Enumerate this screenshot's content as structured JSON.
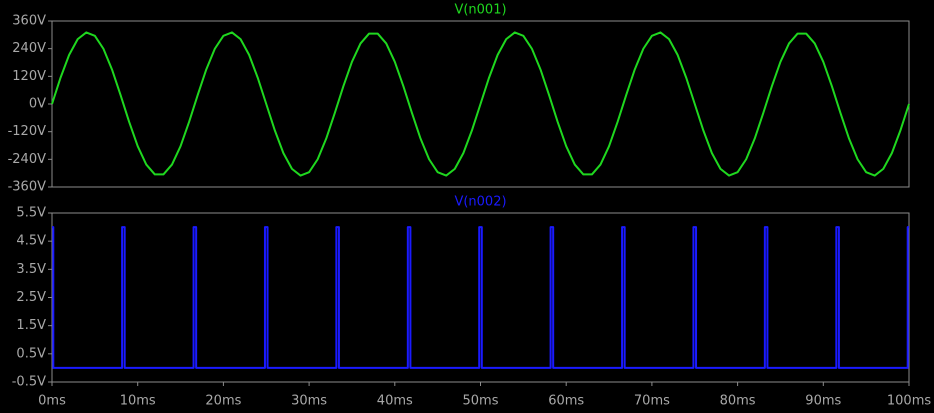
{
  "chart_data": [
    {
      "type": "line",
      "x": [
        0,
        1,
        2,
        3,
        4,
        5,
        6,
        7,
        8,
        9,
        10,
        11,
        12,
        13,
        14,
        15,
        16,
        17,
        18,
        19,
        20,
        21,
        22,
        23,
        24,
        25,
        26,
        27,
        28,
        29,
        30,
        31,
        32,
        33,
        34,
        35,
        36,
        37,
        38,
        39,
        40,
        41,
        42,
        43,
        44,
        45,
        46,
        47,
        48,
        49,
        50,
        51,
        52,
        53,
        54,
        55,
        56,
        57,
        58,
        59,
        60,
        61,
        62,
        63,
        64,
        65,
        66,
        67,
        68,
        69,
        70,
        71,
        72,
        73,
        74,
        75,
        76,
        77,
        78,
        79,
        80,
        81,
        82,
        83,
        84,
        85,
        86,
        87,
        88,
        89,
        90,
        91,
        92,
        93,
        94,
        95,
        96,
        97,
        98,
        99,
        100
      ],
      "series": [
        {
          "name": "V(n001)",
          "color": "#1fd81f",
          "values": [
            0,
            114.5,
            212.9,
            281.4,
            310.4,
            295.8,
            239.6,
            149.8,
            39.0,
            -77.3,
            -182.8,
            -262.6,
            -305.5,
            -305.5,
            -262.6,
            -182.8,
            -77.3,
            39.0,
            149.8,
            239.6,
            295.8,
            310.4,
            281.4,
            212.9,
            114.5,
            0,
            -114.5,
            -212.9,
            -281.4,
            -310.4,
            -295.8,
            -239.6,
            -149.8,
            -39.0,
            77.3,
            182.8,
            262.6,
            305.5,
            305.5,
            262.6,
            182.8,
            77.3,
            -39.0,
            -149.8,
            -239.6,
            -295.8,
            -310.4,
            -281.4,
            -212.9,
            -114.5,
            0,
            114.5,
            212.9,
            281.4,
            310.4,
            295.8,
            239.6,
            149.8,
            39.0,
            -77.3,
            -182.8,
            -262.6,
            -305.5,
            -305.5,
            -262.6,
            -182.8,
            -77.3,
            39.0,
            149.8,
            239.6,
            295.8,
            310.4,
            281.4,
            212.9,
            114.5,
            0,
            -114.5,
            -212.9,
            -281.4,
            -310.4,
            -295.8,
            -239.6,
            -149.8,
            -39.0,
            77.3,
            182.8,
            262.6,
            305.5,
            305.5,
            262.6,
            182.8,
            77.3,
            -39.0,
            -149.8,
            -239.6,
            -295.8,
            -310.4,
            -281.4,
            -212.9,
            -114.5,
            0
          ]
        }
      ],
      "xlim": [
        0,
        100
      ],
      "ylim": [
        -360,
        360
      ],
      "yticks": [
        {
          "value": -360,
          "label": "-360V"
        },
        {
          "value": -240,
          "label": "-240V"
        },
        {
          "value": -120,
          "label": "-120V"
        },
        {
          "value": 0,
          "label": "0V"
        },
        {
          "value": 120,
          "label": "120V"
        },
        {
          "value": 240,
          "label": "240V"
        },
        {
          "value": 360,
          "label": "360V"
        }
      ]
    },
    {
      "type": "line",
      "x": [
        0,
        0.15,
        0.15,
        8.18,
        8.18,
        8.48,
        8.48,
        16.52,
        16.52,
        16.82,
        16.82,
        24.85,
        24.85,
        25.15,
        25.15,
        33.18,
        33.18,
        33.48,
        33.48,
        41.52,
        41.52,
        41.82,
        41.82,
        49.85,
        49.85,
        50.15,
        50.15,
        58.18,
        58.18,
        58.48,
        58.48,
        66.52,
        66.52,
        66.82,
        66.82,
        74.85,
        74.85,
        75.15,
        75.15,
        83.18,
        83.18,
        83.48,
        83.48,
        91.52,
        91.52,
        91.82,
        91.82,
        99.85,
        99.85,
        100
      ],
      "series": [
        {
          "name": "V(n002)",
          "color": "#1a1aff",
          "values": [
            5,
            5,
            0,
            0,
            5,
            5,
            0,
            0,
            5,
            5,
            0,
            0,
            5,
            5,
            0,
            0,
            5,
            5,
            0,
            0,
            5,
            5,
            0,
            0,
            5,
            5,
            0,
            0,
            5,
            5,
            0,
            0,
            5,
            5,
            0,
            0,
            5,
            5,
            0,
            0,
            5,
            5,
            0,
            0,
            5,
            5,
            0,
            0,
            5,
            5
          ]
        }
      ],
      "xlim": [
        0,
        100
      ],
      "xticks": [
        {
          "value": 0,
          "label": "0ms"
        },
        {
          "value": 10,
          "label": "10ms"
        },
        {
          "value": 20,
          "label": "20ms"
        },
        {
          "value": 30,
          "label": "30ms"
        },
        {
          "value": 40,
          "label": "40ms"
        },
        {
          "value": 50,
          "label": "50ms"
        },
        {
          "value": 60,
          "label": "60ms"
        },
        {
          "value": 70,
          "label": "70ms"
        },
        {
          "value": 80,
          "label": "80ms"
        },
        {
          "value": 90,
          "label": "90ms"
        },
        {
          "value": 100,
          "label": "100ms"
        }
      ],
      "ylim": [
        -0.5,
        5.5
      ],
      "yticks": [
        {
          "value": -0.5,
          "label": "-0.5V"
        },
        {
          "value": 0.5,
          "label": "0.5V"
        },
        {
          "value": 1.5,
          "label": "1.5V"
        },
        {
          "value": 2.5,
          "label": "2.5V"
        },
        {
          "value": 3.5,
          "label": "3.5V"
        },
        {
          "value": 4.5,
          "label": "4.5V"
        },
        {
          "value": 5.5,
          "label": "5.5V"
        }
      ]
    }
  ]
}
